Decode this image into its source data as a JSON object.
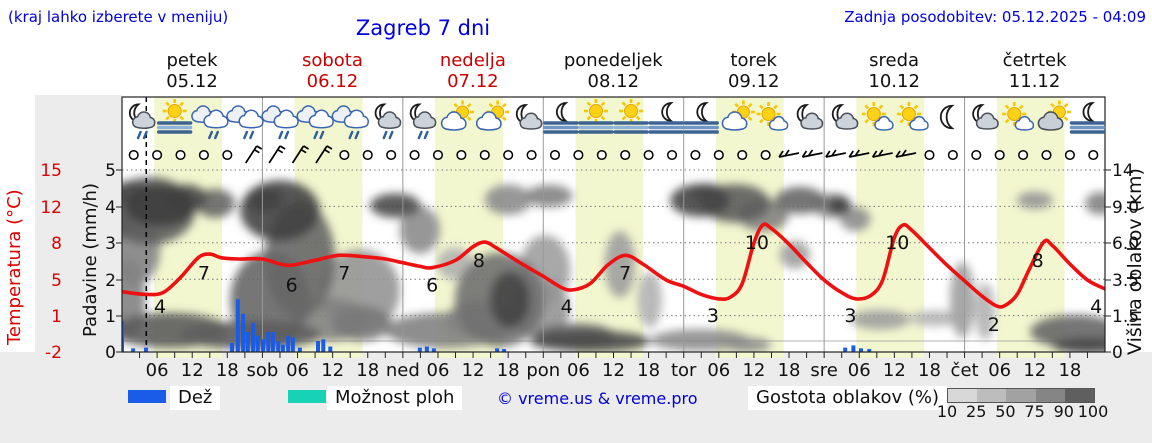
{
  "header": {
    "hint": "(kraj lahko izberete v meniju)",
    "title": "Zagreb 7 dni",
    "updated": "Zadnja posodobitev: 05.12.2025 - 04:09"
  },
  "days": [
    {
      "name": "petek",
      "date": "05.12",
      "red": false
    },
    {
      "name": "sobota",
      "date": "06.12",
      "red": true
    },
    {
      "name": "nedelja",
      "date": "07.12",
      "red": true
    },
    {
      "name": "ponedeljek",
      "date": "08.12",
      "red": false
    },
    {
      "name": "torek",
      "date": "09.12",
      "red": false
    },
    {
      "name": "sreda",
      "date": "10.12",
      "red": false
    },
    {
      "name": "četrtek",
      "date": "11.12",
      "red": false
    }
  ],
  "axes": {
    "temp_label": "Temperatura (°C)",
    "temp_ticks": [
      "15",
      "12",
      "8",
      "5",
      "1",
      "-2"
    ],
    "precip_label": "Padavine (mm/h)",
    "precip_ticks": [
      "5",
      "4",
      "3",
      "2",
      "1",
      "0"
    ],
    "alt_label": "Višina oblakov (km)",
    "alt_ticks": [
      "14",
      "9.0",
      "6.0",
      "3.5",
      "1.5",
      "0"
    ]
  },
  "x_labels": [
    "06",
    "12",
    "18",
    "sob",
    "06",
    "12",
    "18",
    "ned",
    "06",
    "12",
    "18",
    "pon",
    "06",
    "12",
    "18",
    "tor",
    "06",
    "12",
    "18",
    "sre",
    "06",
    "12",
    "18",
    "čet",
    "06",
    "12",
    "18"
  ],
  "legend": {
    "rain_label": "Dež",
    "showers_label": "Možnost ploh",
    "copyright": "© vreme.us & vreme.pro",
    "density_label": "Gostota oblakov (%)",
    "density_ticks": [
      "10",
      "25",
      "50",
      "75",
      "90",
      "100"
    ],
    "density_colors": [
      "#d8d8d8",
      "#bdbdbd",
      "#a2a2a2",
      "#858585",
      "#5f5f5f"
    ]
  },
  "colors": {
    "accent_blue": "#0000dd",
    "red_day": "#cc0000",
    "temp_line": "#ee1111",
    "rain_bar": "#1a5ce8",
    "showers": "#17d2b4",
    "daylight_band": "#f3f7cf",
    "page_gray": "#ececec"
  },
  "chart_data": {
    "type": "meteogram",
    "x_unit": "hours from 05.12 00:00",
    "x_range": [
      0,
      168
    ],
    "now_h": 4.15,
    "daylight_h": [
      [
        5.5,
        17.1
      ],
      [
        29.5,
        41.1
      ],
      [
        53.5,
        65.1
      ],
      [
        77.5,
        89.1
      ],
      [
        101.5,
        113.1
      ],
      [
        125.5,
        137.1
      ],
      [
        149.5,
        161.1
      ]
    ],
    "temperature": {
      "unit": "°C",
      "axis_ticks": [
        -2,
        1,
        5,
        8,
        12,
        15
      ],
      "series": [
        [
          0,
          3.7
        ],
        [
          4,
          3.4
        ],
        [
          7,
          3.6
        ],
        [
          10,
          5.2
        ],
        [
          13,
          6.8
        ],
        [
          15,
          7.1
        ],
        [
          17,
          6.8
        ],
        [
          20,
          6.7
        ],
        [
          24,
          6.7
        ],
        [
          27,
          6.3
        ],
        [
          29,
          6.2
        ],
        [
          33,
          6.6
        ],
        [
          37,
          7.0
        ],
        [
          41,
          6.9
        ],
        [
          45,
          6.7
        ],
        [
          48,
          6.4
        ],
        [
          51,
          6.1
        ],
        [
          53,
          6.0
        ],
        [
          57,
          6.6
        ],
        [
          60,
          7.7
        ],
        [
          62,
          8.1
        ],
        [
          64,
          7.6
        ],
        [
          68,
          6.4
        ],
        [
          72,
          5.3
        ],
        [
          75,
          4.2
        ],
        [
          77,
          3.9
        ],
        [
          80,
          4.6
        ],
        [
          83,
          6.2
        ],
        [
          86,
          7.0
        ],
        [
          89,
          6.3
        ],
        [
          93,
          5.0
        ],
        [
          96,
          4.3
        ],
        [
          99,
          3.4
        ],
        [
          102,
          2.9
        ],
        [
          104,
          3.1
        ],
        [
          106,
          4.6
        ],
        [
          108,
          8.0
        ],
        [
          109.5,
          10.0
        ],
        [
          111,
          9.6
        ],
        [
          114,
          7.9
        ],
        [
          117,
          6.4
        ],
        [
          120,
          5.0
        ],
        [
          123,
          3.6
        ],
        [
          125.5,
          2.9
        ],
        [
          128,
          3.3
        ],
        [
          130,
          5.0
        ],
        [
          132,
          8.6
        ],
        [
          133.5,
          10.0
        ],
        [
          135,
          9.4
        ],
        [
          138,
          7.6
        ],
        [
          141,
          6.2
        ],
        [
          144,
          4.9
        ],
        [
          147,
          3.2
        ],
        [
          149.5,
          2.1
        ],
        [
          151,
          2.2
        ],
        [
          153,
          3.4
        ],
        [
          155,
          5.8
        ],
        [
          157.5,
          8.1
        ],
        [
          159,
          7.8
        ],
        [
          162,
          6.3
        ],
        [
          165,
          5.0
        ],
        [
          168,
          4.0
        ]
      ],
      "labels": [
        [
          6.5,
          4
        ],
        [
          14,
          7
        ],
        [
          29,
          6
        ],
        [
          38,
          7
        ],
        [
          53,
          6
        ],
        [
          61,
          8
        ],
        [
          76,
          4
        ],
        [
          86,
          7
        ],
        [
          101,
          3
        ],
        [
          108.5,
          10
        ],
        [
          124.5,
          3
        ],
        [
          132.5,
          10
        ],
        [
          149,
          2
        ],
        [
          156.5,
          8
        ],
        [
          166.5,
          4
        ]
      ]
    },
    "precipitation": {
      "unit": "mm/h",
      "axis_ticks": [
        0,
        1,
        2,
        3,
        4,
        5
      ],
      "bars": [
        [
          0,
          0.85
        ],
        [
          1.9,
          0.1
        ],
        [
          4.1,
          0.12
        ],
        [
          18.8,
          0.25
        ],
        [
          19.8,
          1.45
        ],
        [
          20.7,
          1.05
        ],
        [
          21.5,
          0.55
        ],
        [
          22.4,
          0.8
        ],
        [
          23.2,
          0.45
        ],
        [
          24.1,
          0.35
        ],
        [
          25,
          0.55
        ],
        [
          25.8,
          0.55
        ],
        [
          26.7,
          0.3
        ],
        [
          27.5,
          0.2
        ],
        [
          28.4,
          0.45
        ],
        [
          29.2,
          0.4
        ],
        [
          30.4,
          0.12
        ],
        [
          33.5,
          0.3
        ],
        [
          34.4,
          0.35
        ],
        [
          35.6,
          0.15
        ],
        [
          50.9,
          0.12
        ],
        [
          52.1,
          0.15
        ],
        [
          53.3,
          0.1
        ],
        [
          64.1,
          0.1
        ],
        [
          65.3,
          0.08
        ],
        [
          123.6,
          0.12
        ],
        [
          125,
          0.18
        ],
        [
          126.3,
          0.1
        ],
        [
          127.7,
          0.08
        ]
      ]
    },
    "cloud_layers": {
      "unit": "km",
      "axis_ticks": [
        0,
        1.5,
        3.5,
        6,
        9,
        14
      ],
      "density_unit": "%",
      "blobs": [
        [
          0,
          8.7,
          2,
          2.8,
          75
        ],
        [
          1.5,
          11,
          3,
          1.5,
          85
        ],
        [
          4.8,
          8.7,
          7.7,
          3.3,
          75
        ],
        [
          6.5,
          9.2,
          6,
          2.2,
          92
        ],
        [
          11,
          10.2,
          3.5,
          1.7,
          85
        ],
        [
          2.2,
          5.6,
          4.3,
          2.6,
          55
        ],
        [
          1,
          2.4,
          3,
          2.1,
          55
        ],
        [
          8.2,
          0.9,
          10,
          0.75,
          75
        ],
        [
          15.9,
          9.5,
          3.4,
          1.6,
          70
        ],
        [
          24.5,
          10,
          3,
          1.5,
          88
        ],
        [
          27,
          8.7,
          6.8,
          3,
          90
        ],
        [
          30.4,
          4.9,
          6,
          3.8,
          70
        ],
        [
          25.3,
          2.4,
          6.8,
          2.8,
          70
        ],
        [
          21.9,
          0.7,
          12,
          0.6,
          75
        ],
        [
          35.6,
          1.35,
          6.8,
          1,
          55
        ],
        [
          41,
          1.2,
          5,
          0.8,
          60
        ],
        [
          46.7,
          9.2,
          4.3,
          1.3,
          85
        ],
        [
          50.9,
          7.1,
          3.4,
          1.9,
          50
        ],
        [
          40.7,
          2.9,
          6.8,
          2.3,
          45
        ],
        [
          55.2,
          0.9,
          10.3,
          0.75,
          55
        ],
        [
          61.2,
          1.35,
          6,
          0.85,
          55
        ],
        [
          64.6,
          2.4,
          7.7,
          2.6,
          65
        ],
        [
          66.3,
          2.4,
          3.4,
          1.5,
          88
        ],
        [
          72.3,
          4.2,
          4.3,
          2.2,
          40
        ],
        [
          66,
          10,
          4,
          1.8,
          50
        ],
        [
          73,
          10.5,
          4,
          1.5,
          55
        ],
        [
          80,
          0.45,
          10.3,
          0.45,
          85
        ],
        [
          85.1,
          4.55,
          2.6,
          2.2,
          40
        ],
        [
          90.2,
          2.4,
          2.1,
          1.5,
          30
        ],
        [
          98.8,
          9.9,
          5.1,
          1.9,
          88
        ],
        [
          104.8,
          9.5,
          6,
          2.1,
          75
        ],
        [
          109.6,
          8.3,
          4.3,
          1.5,
          55
        ],
        [
          100,
          11,
          3,
          1.2,
          70
        ],
        [
          98.8,
          0.5,
          8.5,
          0.45,
          50
        ],
        [
          107,
          0.3,
          4,
          0.3,
          50
        ],
        [
          115.9,
          9.9,
          4.3,
          1.6,
          70
        ],
        [
          121.3,
          9.2,
          3.4,
          1.3,
          55
        ],
        [
          122.5,
          9.2,
          2,
          1,
          90
        ],
        [
          125.3,
          8,
          2.6,
          1,
          50
        ],
        [
          115,
          5.2,
          2.6,
          0.95,
          40
        ],
        [
          129.6,
          1.35,
          5.1,
          0.45,
          40
        ],
        [
          138.9,
          1.4,
          4.3,
          0.35,
          30
        ],
        [
          143.6,
          2.4,
          2.1,
          2,
          40
        ],
        [
          147.5,
          1.75,
          1.7,
          1.4,
          30
        ],
        [
          156,
          9.9,
          3.1,
          1.1,
          45
        ],
        [
          162.9,
          0.85,
          7.7,
          0.7,
          70
        ],
        [
          165.8,
          0.25,
          6.8,
          0.4,
          88
        ],
        [
          167.2,
          9.5,
          2.6,
          1.3,
          55
        ],
        [
          56.9,
          4.6,
          3.1,
          1.1,
          30
        ],
        [
          71.4,
          1.9,
          5.1,
          1.5,
          45
        ],
        [
          77.4,
          0.7,
          6.8,
          0.5,
          70
        ]
      ]
    },
    "weather_icons": [
      "night_cloud_rain",
      "sun_fog",
      "cloud_rain",
      "cloud_rain",
      "cloud_rain",
      "cloud_rain",
      "cloud_rain",
      "night_cloud_rain",
      "night_cloud_rain",
      "sun_cloud",
      "sun_cloud",
      "night_cloud",
      "night_fog",
      "sun_fog",
      "sun_fog",
      "night_fog",
      "night_fog",
      "sun_cloud",
      "sun_smallcloud",
      "night_cloud",
      "night_cloud",
      "sun_smallcloud",
      "sun_smallcloud",
      "moon",
      "night_cloud",
      "sun_smallcloud",
      "sun_cloud_gray",
      "night_fog"
    ],
    "wind_symbols": [
      "calm",
      "calm",
      "calm",
      "calm",
      "calm",
      "barb_sw",
      "barb_sw",
      "barb_sw",
      "barb_sw",
      "calm",
      "calm",
      "calm",
      "calm",
      "calm",
      "calm",
      "calm",
      "calm",
      "calm",
      "calm",
      "calm",
      "calm",
      "calm",
      "calm",
      "calm",
      "calm",
      "calm",
      "calm",
      "calm",
      "barb_e",
      "barb_e",
      "barb_e",
      "barb_e",
      "barb_e",
      "barb_e",
      "calm",
      "calm",
      "calm",
      "calm",
      "calm",
      "calm",
      "calm",
      "calm"
    ]
  }
}
